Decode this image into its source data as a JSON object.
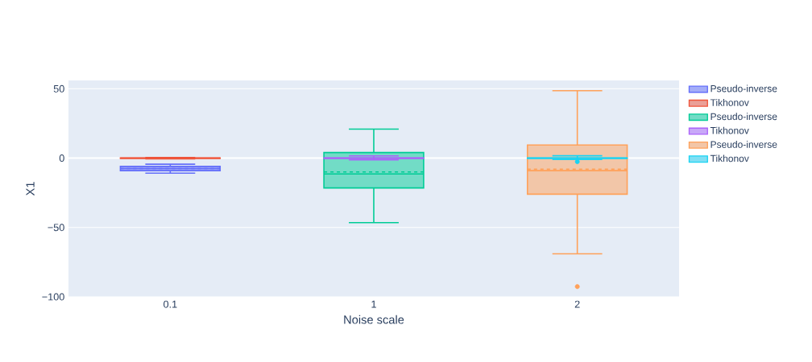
{
  "chart_data": {
    "type": "box",
    "xlabel": "Noise scale",
    "ylabel": "X1",
    "categories": [
      "0.1",
      "1",
      "2"
    ],
    "ylim": [
      -100,
      56
    ],
    "yticks": [
      50,
      0,
      {
        "value": -50,
        "label": "−50"
      },
      {
        "value": -100,
        "label": "−100"
      }
    ],
    "grid": "y",
    "legend": "top right",
    "series": [
      {
        "name": "Pseudo-inverse",
        "color": "#636efa",
        "boxes": [
          {
            "low": -10.8,
            "q1": -9,
            "median": -7.5,
            "q3": -6,
            "high": -4.4,
            "mean": -7.5
          },
          null,
          null
        ]
      },
      {
        "name": "Tikhonov",
        "color": "#ef553b",
        "boxes": [
          {
            "low": -0.5,
            "q1": -0.2,
            "median": 0,
            "q3": 0.2,
            "high": 0.5
          },
          null,
          null
        ]
      },
      {
        "name": "Pseudo-inverse",
        "color": "#00cc96",
        "boxes": [
          null,
          {
            "low": -46.5,
            "q1": -21.5,
            "median": -11.4,
            "q3": 4,
            "high": 20.9,
            "mean": -10
          },
          null
        ]
      },
      {
        "name": "Tikhonov",
        "color": "#ab63fa",
        "boxes": [
          null,
          {
            "low": -1.3,
            "q1": -0.2,
            "median": 0,
            "q3": 0.2,
            "high": 1.6
          },
          null
        ]
      },
      {
        "name": "Pseudo-inverse",
        "color": "#ffa15a",
        "boxes": [
          null,
          null,
          {
            "low": -69,
            "q1": -26,
            "median": -9,
            "q3": 9.5,
            "high": 48.6,
            "mean": -8,
            "outliers": [
              -92.6
            ]
          }
        ]
      },
      {
        "name": "Tikhonov",
        "color": "#19d3f3",
        "boxes": [
          null,
          null,
          {
            "low": -1,
            "q1": -0.2,
            "median": 0,
            "q3": 0.2,
            "high": 1.7,
            "outliers": [
              -2.6
            ]
          }
        ]
      }
    ]
  }
}
